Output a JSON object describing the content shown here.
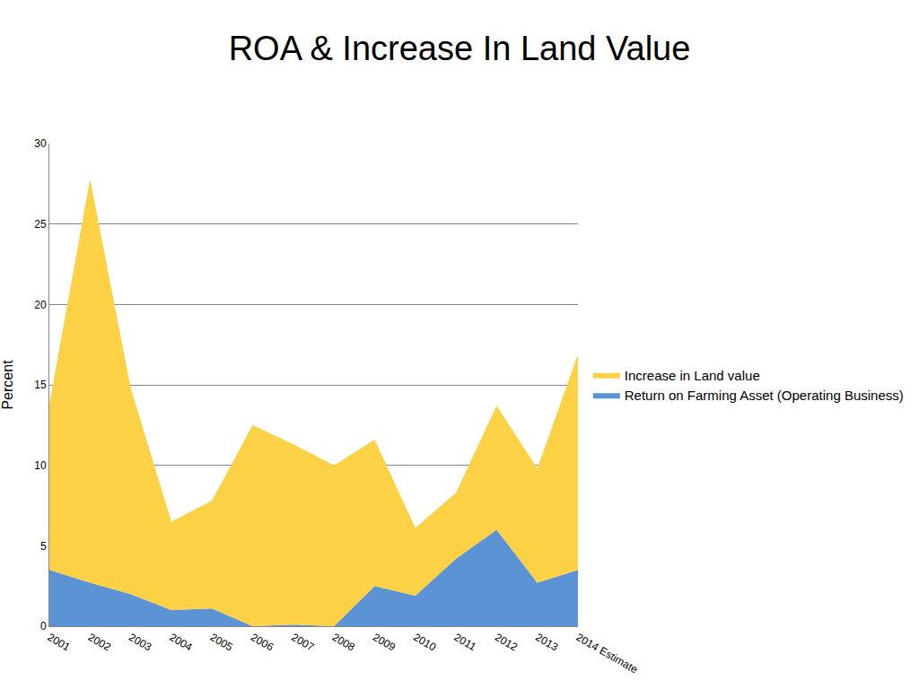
{
  "chart_data": {
    "type": "area",
    "title": "ROA & Increase In Land Value",
    "y_label": "Percent",
    "categories": [
      "2001",
      "2002",
      "2003",
      "2004",
      "2005",
      "2006",
      "2007",
      "2008",
      "2009",
      "2010",
      "2011",
      "2012",
      "2013",
      "2014 Estimate"
    ],
    "series": [
      {
        "name": "Return on Farming Asset (Operating Business)",
        "color": "#5b93d5",
        "values": [
          3.5,
          2.7,
          2.0,
          1.0,
          1.1,
          0.0,
          0.1,
          0.0,
          2.5,
          1.9,
          4.2,
          6.0,
          2.7,
          3.5
        ]
      },
      {
        "name": "Increase in Land value",
        "color": "#fdd146",
        "values": [
          10.3,
          25.1,
          12.8,
          5.5,
          6.7,
          12.5,
          11.2,
          10.0,
          9.1,
          4.2,
          4.1,
          7.7,
          7.1,
          13.4
        ]
      }
    ],
    "stacked": true,
    "ylim": [
      0,
      30
    ],
    "yticks": [
      0,
      5,
      10,
      15,
      20,
      25,
      30
    ],
    "grid": true,
    "legend": "right"
  }
}
